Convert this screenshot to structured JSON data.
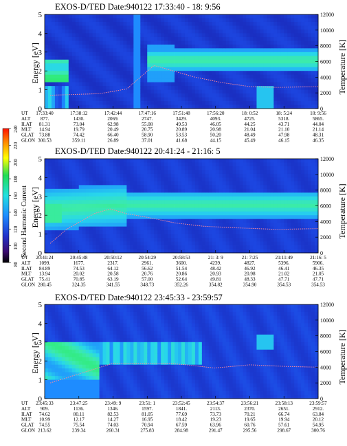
{
  "colorbar": {
    "label": "Second Harmonic Current",
    "ticks": [
      "80",
      "100",
      "120",
      "140",
      "160",
      "180",
      "200",
      "220",
      "240"
    ]
  },
  "panels": [
    {
      "title": "EXOS-D/TED   Date:940122  17:33:40 - 18: 9:56",
      "ylabel_left": "Energy [eV]",
      "ylabel_right": "Temperature [K]",
      "ylim": [
        0,
        5
      ],
      "yticks_left": [
        "0",
        "1",
        "2",
        "3",
        "4",
        "5"
      ],
      "ylim_right": [
        0,
        12000
      ],
      "yticks_right": [
        "0",
        "2000",
        "4000",
        "6000",
        "8000",
        "10000",
        "12000"
      ],
      "row_labels": [
        "UT",
        "ALT",
        "ILAT",
        "MLT",
        "GLAT",
        "GLON"
      ],
      "columns": [
        [
          "17:33:40",
          "877.",
          "81.31",
          "14.94",
          "73.88",
          "300.53"
        ],
        [
          "17:38:12",
          "1430.",
          "73.04",
          "19.79",
          "74.42",
          "359.11"
        ],
        [
          "17:42:44",
          "2069.",
          "62.98",
          "20.49",
          "66.40",
          "26.89"
        ],
        [
          "17:47:16",
          "2747.",
          "55.08",
          "20.75",
          "58.90",
          "37.01"
        ],
        [
          "17:51:48",
          "3429.",
          "49.53",
          "20.89",
          "53.53",
          "41.68"
        ],
        [
          "17:56:20",
          "4093.",
          "46.05",
          "20.98",
          "50.20",
          "44.15"
        ],
        [
          "18: 0:52",
          "4725.",
          "44.25",
          "21.04",
          "48.49",
          "45.49"
        ],
        [
          "18: 5:24",
          "5318.",
          "43.71",
          "21.10",
          "47.98",
          "46.15"
        ],
        [
          "18: 9:56",
          "5865.",
          "44.04",
          "21.14",
          "48.31",
          "46.35"
        ]
      ],
      "temperature_curve": [
        [
          2,
          1700
        ],
        [
          20,
          1900
        ],
        [
          30,
          2500
        ],
        [
          40,
          5500
        ],
        [
          48,
          4700
        ],
        [
          55,
          4000
        ],
        [
          65,
          3300
        ],
        [
          75,
          2800
        ],
        [
          85,
          2700
        ],
        [
          100,
          2800
        ]
      ]
    },
    {
      "title": "EXOS-D/TED   Date:940122  20:41:24 - 21:16: 5",
      "ylabel_left": "Energy [eV]",
      "ylabel_right": "Temperature [K]",
      "ylim": [
        0,
        5
      ],
      "yticks_left": [
        "0",
        "1",
        "2",
        "3",
        "4",
        "5"
      ],
      "ylim_right": [
        0,
        12000
      ],
      "yticks_right": [
        "0",
        "2000",
        "4000",
        "6000",
        "8000",
        "10000",
        "12000"
      ],
      "row_labels": [
        "UT",
        "ALT",
        "ILAT",
        "MLT",
        "GLAT",
        "GLON"
      ],
      "columns": [
        [
          "20:41:24",
          "1099.",
          "84.89",
          "13.94",
          "75.41",
          "280.45"
        ],
        [
          "20:45:48",
          "1677.",
          "74.53",
          "20.02",
          "70.85",
          "324.35"
        ],
        [
          "20:50:12",
          "2317.",
          "64.12",
          "20.58",
          "63.19",
          "341.55"
        ],
        [
          "20:54:29",
          "2961.",
          "56.62",
          "20.76",
          "57.00",
          "348.73"
        ],
        [
          "20:58:53",
          "3600.",
          "51.54",
          "20.86",
          "52.64",
          "352.26"
        ],
        [
          "21: 3: 9",
          "4239.",
          "48.42",
          "20.93",
          "49.81",
          "354.82"
        ],
        [
          "21: 7:25",
          "4827.",
          "46.92",
          "20.98",
          "48.33",
          "354.90"
        ],
        [
          "21:11:49",
          "5396.",
          "46.41",
          "21.02",
          "47.71",
          "354.53"
        ],
        [
          "21:16: 5",
          "5906.",
          "46.35",
          "21.05",
          "47.71",
          "354.53"
        ]
      ],
      "temperature_curve": [
        [
          2,
          1200
        ],
        [
          8,
          3000
        ],
        [
          14,
          4200
        ],
        [
          18,
          5000
        ],
        [
          24,
          5600
        ],
        [
          30,
          5000
        ],
        [
          38,
          4500
        ],
        [
          48,
          3800
        ],
        [
          58,
          3400
        ],
        [
          70,
          3200
        ],
        [
          85,
          3000
        ],
        [
          100,
          3100
        ]
      ]
    },
    {
      "title": "EXOS-D/TED   Date:940122  23:45:33 - 23:59:57",
      "ylabel_left": "Energy [eV]",
      "ylabel_right": "Temperature [K]",
      "ylim": [
        0,
        5
      ],
      "yticks_left": [
        "0",
        "1",
        "2",
        "3",
        "4",
        "5"
      ],
      "ylim_right": [
        0,
        12000
      ],
      "yticks_right": [
        "0",
        "2000",
        "4000",
        "6000",
        "8000",
        "10000",
        "12000"
      ],
      "row_labels": [
        "UT",
        "ALT",
        "ILAT",
        "MLT",
        "GLAT",
        "GLON"
      ],
      "columns": [
        [
          "23:45:33",
          "909.",
          "74.62",
          "10.99",
          "74.55",
          "213.62"
        ],
        [
          "23:47:25",
          "1136.",
          "80.11",
          "12.17",
          "75.54",
          "239.34"
        ],
        [
          "23:49: 9",
          "1346.",
          "82.53",
          "14.27",
          "74.03",
          "260.31"
        ],
        [
          "23:51: 1",
          "1597.",
          "81.05",
          "16.95",
          "70.94",
          "275.83"
        ],
        [
          "23:52:45",
          "1841.",
          "77.69",
          "18.42",
          "67.59",
          "284.98"
        ],
        [
          "23:54:37",
          "2113.",
          "73.73",
          "19.23",
          "63.96",
          "291.47"
        ],
        [
          "23:56:21",
          "2370.",
          "70.21",
          "19.65",
          "60.76",
          "295.56"
        ],
        [
          "23:58:13",
          "2651.",
          "66.74",
          "19.94",
          "57.61",
          "298.67"
        ],
        [
          "23:59:57",
          "2912.",
          "63.84",
          "20.12",
          "54.95",
          "300.76"
        ]
      ],
      "temperature_curve": [
        [
          2,
          2000
        ],
        [
          25,
          4500
        ],
        [
          45,
          4500
        ],
        [
          52,
          4300
        ],
        [
          62,
          3900
        ],
        [
          75,
          4300
        ],
        [
          88,
          4100
        ],
        [
          100,
          4000
        ]
      ]
    }
  ],
  "chart_data": [
    {
      "type": "heatmap",
      "title": "EXOS-D/TED   Date:940122  17:33:40 - 18: 9:56",
      "ylabel": "Energy [eV]",
      "y2label": "Temperature [K]",
      "ylim": [
        0,
        5
      ],
      "y2lim": [
        0,
        12000
      ],
      "x_ticks": [
        "17:33:40",
        "17:38:12",
        "17:42:44",
        "17:47:16",
        "17:51:48",
        "17:56:20",
        "18: 0:52",
        "18: 5:24",
        "18: 9:56"
      ],
      "series": [
        {
          "name": "Temperature [K]",
          "x_ut": [
            "17:33:40",
            "17:47:16",
            "17:51:48",
            "17:56:20",
            "18: 0:52",
            "18: 9:56"
          ],
          "values": [
            1700,
            5500,
            4000,
            3300,
            2800,
            2800
          ]
        }
      ],
      "colorbar_range": [
        80,
        240
      ]
    },
    {
      "type": "heatmap",
      "title": "EXOS-D/TED   Date:940122  20:41:24 - 21:16: 5",
      "ylabel": "Energy [eV]",
      "y2label": "Temperature [K]",
      "ylim": [
        0,
        5
      ],
      "y2lim": [
        0,
        12000
      ],
      "x_ticks": [
        "20:41:24",
        "20:45:48",
        "20:50:12",
        "20:54:29",
        "20:58:53",
        "21: 3: 9",
        "21: 7:25",
        "21:11:49",
        "21:16: 5"
      ],
      "series": [
        {
          "name": "Temperature [K]",
          "x_ut": [
            "20:41:24",
            "20:50:12",
            "20:58:53",
            "21: 7:25",
            "21:16: 5"
          ],
          "values": [
            1200,
            5600,
            4200,
            3400,
            3100
          ]
        }
      ],
      "colorbar_range": [
        80,
        240
      ]
    },
    {
      "type": "heatmap",
      "title": "EXOS-D/TED   Date:940122  23:45:33 - 23:59:57",
      "ylabel": "Energy [eV]",
      "y2label": "Temperature [K]",
      "ylim": [
        0,
        5
      ],
      "y2lim": [
        0,
        12000
      ],
      "x_ticks": [
        "23:45:33",
        "23:47:25",
        "23:49: 9",
        "23:51: 1",
        "23:52:45",
        "23:54:37",
        "23:56:21",
        "23:58:13",
        "23:59:57"
      ],
      "series": [
        {
          "name": "Temperature [K]",
          "x_ut": [
            "23:45:33",
            "23:49: 9",
            "23:52:45",
            "23:56:21",
            "23:59:57"
          ],
          "values": [
            2000,
            4500,
            4300,
            4100,
            4000
          ]
        }
      ],
      "colorbar_range": [
        80,
        240
      ]
    }
  ]
}
